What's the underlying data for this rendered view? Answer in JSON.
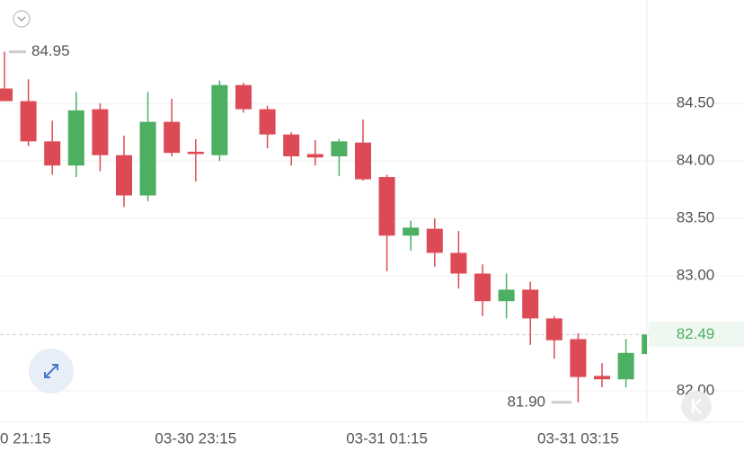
{
  "chart_data": {
    "type": "candlestick",
    "categories": [
      "0 21:15",
      null,
      null,
      null,
      null,
      null,
      null,
      null,
      "03-30 23:15",
      null,
      null,
      null,
      null,
      null,
      null,
      null,
      "03-31 01:15",
      null,
      null,
      null,
      null,
      null,
      null,
      null,
      "03-31 03:15",
      null,
      null,
      null
    ],
    "open": [
      84.63,
      84.52,
      84.17,
      83.96,
      84.45,
      84.05,
      83.7,
      84.34,
      84.08,
      84.05,
      84.66,
      84.45,
      84.23,
      84.06,
      84.04,
      84.16,
      83.86,
      83.35,
      83.41,
      83.2,
      83.02,
      82.78,
      82.88,
      82.63,
      82.45,
      82.13,
      82.1,
      82.32
    ],
    "high": [
      84.95,
      84.71,
      84.35,
      84.6,
      84.5,
      84.22,
      84.6,
      84.54,
      84.19,
      84.7,
      84.68,
      84.48,
      84.25,
      84.18,
      84.19,
      84.36,
      83.88,
      83.48,
      83.5,
      83.39,
      83.1,
      83.02,
      82.95,
      82.65,
      82.5,
      82.24,
      82.45,
      82.59
    ],
    "low": [
      84.52,
      84.13,
      83.88,
      83.86,
      83.91,
      83.6,
      83.65,
      84.04,
      83.82,
      84.0,
      84.42,
      84.11,
      83.96,
      83.96,
      83.87,
      83.83,
      83.04,
      83.22,
      83.08,
      82.89,
      82.65,
      82.63,
      82.4,
      82.28,
      81.9,
      82.03,
      82.03,
      82.32
    ],
    "close": [
      84.52,
      84.17,
      83.96,
      84.44,
      84.05,
      83.7,
      84.34,
      84.07,
      84.06,
      84.66,
      84.45,
      84.23,
      84.04,
      84.03,
      84.17,
      83.84,
      83.35,
      83.42,
      83.2,
      83.02,
      82.78,
      82.88,
      82.63,
      82.44,
      82.12,
      82.1,
      82.33,
      82.49
    ],
    "up_color": "#4caf62",
    "down_color": "#dc4b55",
    "ylim": [
      81.75,
      85.4
    ],
    "yticks": [
      {
        "value": 82,
        "label": "82.00"
      },
      {
        "value": 83,
        "label": "83.00"
      },
      {
        "value": 83.5,
        "label": "83.50"
      },
      {
        "value": 84,
        "label": "84.00"
      },
      {
        "value": 84.5,
        "label": "84.50"
      }
    ],
    "last_price": 82.49,
    "high_marker": 84.95,
    "low_marker": {
      "value": 81.9,
      "label": "81.90"
    },
    "grid": true
  }
}
